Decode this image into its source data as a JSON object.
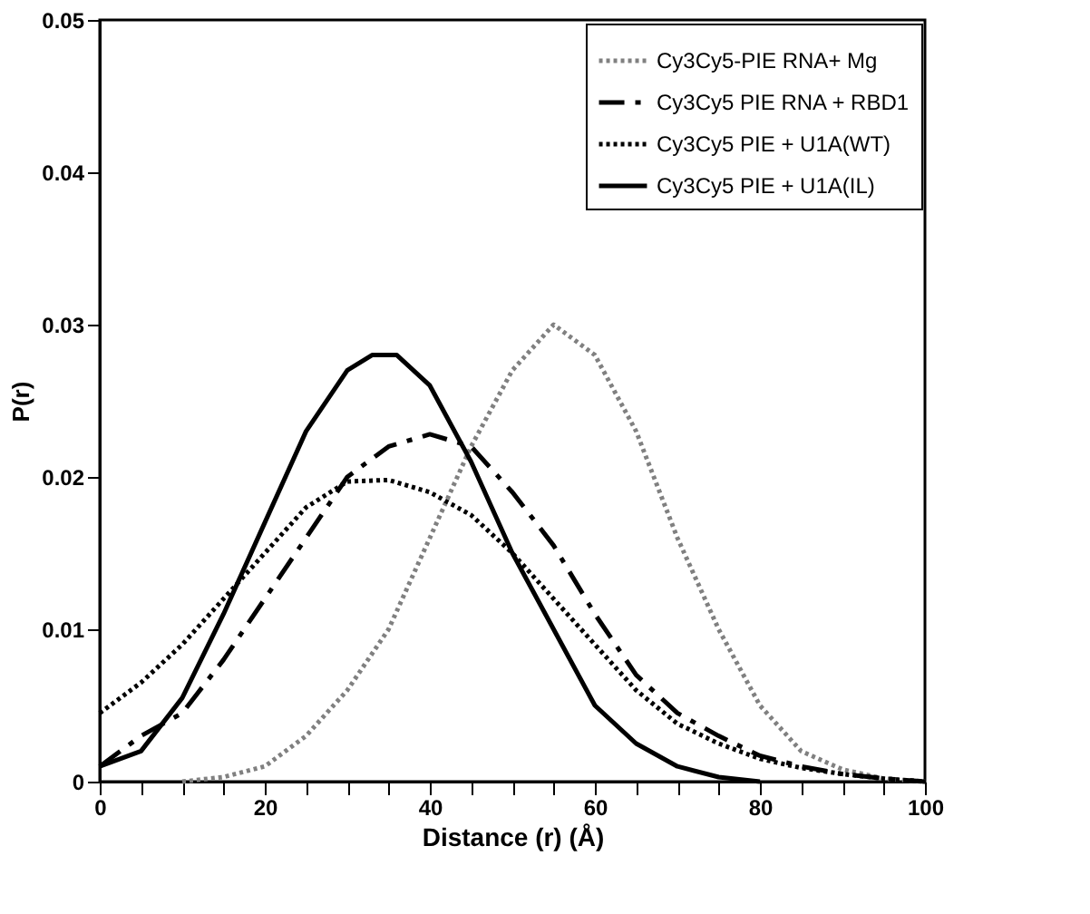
{
  "chart_data": {
    "type": "line",
    "xlabel": "Distance (r)  (Å)",
    "ylabel": "P(r)",
    "xlim": [
      0,
      100
    ],
    "ylim": [
      0,
      0.05
    ],
    "xticks": [
      0,
      {
        "value": 5,
        "label": null
      },
      {
        "value": 10,
        "label": null
      },
      {
        "value": 15,
        "label": null
      },
      20,
      {
        "value": 25,
        "label": null
      },
      {
        "value": 30,
        "label": null
      },
      {
        "value": 35,
        "label": null
      },
      40,
      {
        "value": 45,
        "label": null
      },
      {
        "value": 50,
        "label": null
      },
      {
        "value": 55,
        "label": null
      },
      60,
      {
        "value": 65,
        "label": null
      },
      {
        "value": 70,
        "label": null
      },
      {
        "value": 75,
        "label": null
      },
      80,
      {
        "value": 85,
        "label": null
      },
      {
        "value": 90,
        "label": null
      },
      {
        "value": 95,
        "label": null
      },
      100
    ],
    "yticks": [
      0,
      0.01,
      0.02,
      0.03,
      0.04,
      0.05
    ],
    "grid": false,
    "legend": "top right",
    "marker": "none",
    "series": [
      {
        "name": "Cy3Cy5-PIE RNA+ Mg",
        "color": "#808080",
        "line_style": "dotted",
        "x": [
          10,
          15,
          20,
          25,
          30,
          35,
          40,
          45,
          50,
          55,
          60,
          65,
          70,
          75,
          80,
          85,
          90,
          95,
          100
        ],
        "values": [
          0,
          0.0003,
          0.001,
          0.003,
          0.006,
          0.01,
          0.016,
          0.022,
          0.027,
          0.03,
          0.028,
          0.023,
          0.016,
          0.01,
          0.005,
          0.002,
          0.0008,
          0.0002,
          0
        ]
      },
      {
        "name": "Cy3Cy5 PIE RNA + RBD1",
        "color": "#000000",
        "line_style": "dashed",
        "x": [
          0,
          5,
          10,
          15,
          20,
          25,
          30,
          35,
          40,
          45,
          50,
          55,
          60,
          65,
          70,
          75,
          80,
          85,
          90,
          95,
          100
        ],
        "values": [
          0.001,
          0.003,
          0.0045,
          0.008,
          0.012,
          0.016,
          0.02,
          0.022,
          0.0228,
          0.022,
          0.019,
          0.0155,
          0.011,
          0.007,
          0.0045,
          0.003,
          0.0017,
          0.001,
          0.0005,
          0.0002,
          0
        ]
      },
      {
        "name": "Cy3Cy5 PIE + U1A(WT)",
        "color": "#000000",
        "line_style": "dotted",
        "x": [
          0,
          5,
          10,
          15,
          20,
          25,
          30,
          35,
          40,
          45,
          50,
          55,
          60,
          65,
          70,
          75,
          80,
          85,
          90,
          95,
          100
        ],
        "values": [
          0.0045,
          0.0065,
          0.009,
          0.012,
          0.015,
          0.018,
          0.0197,
          0.0198,
          0.019,
          0.0175,
          0.015,
          0.012,
          0.009,
          0.006,
          0.0038,
          0.0025,
          0.0015,
          0.0009,
          0.0005,
          0.0002,
          0
        ]
      },
      {
        "name": "Cy3Cy5 PIE + U1A(IL)",
        "color": "#000000",
        "line_style": "solid",
        "x": [
          0,
          5,
          10,
          15,
          20,
          25,
          30,
          33,
          36,
          40,
          45,
          50,
          55,
          60,
          65,
          70,
          75,
          80
        ],
        "values": [
          0.001,
          0.002,
          0.0055,
          0.011,
          0.017,
          0.023,
          0.027,
          0.028,
          0.028,
          0.026,
          0.021,
          0.015,
          0.01,
          0.005,
          0.0025,
          0.001,
          0.0003,
          0
        ]
      }
    ]
  }
}
